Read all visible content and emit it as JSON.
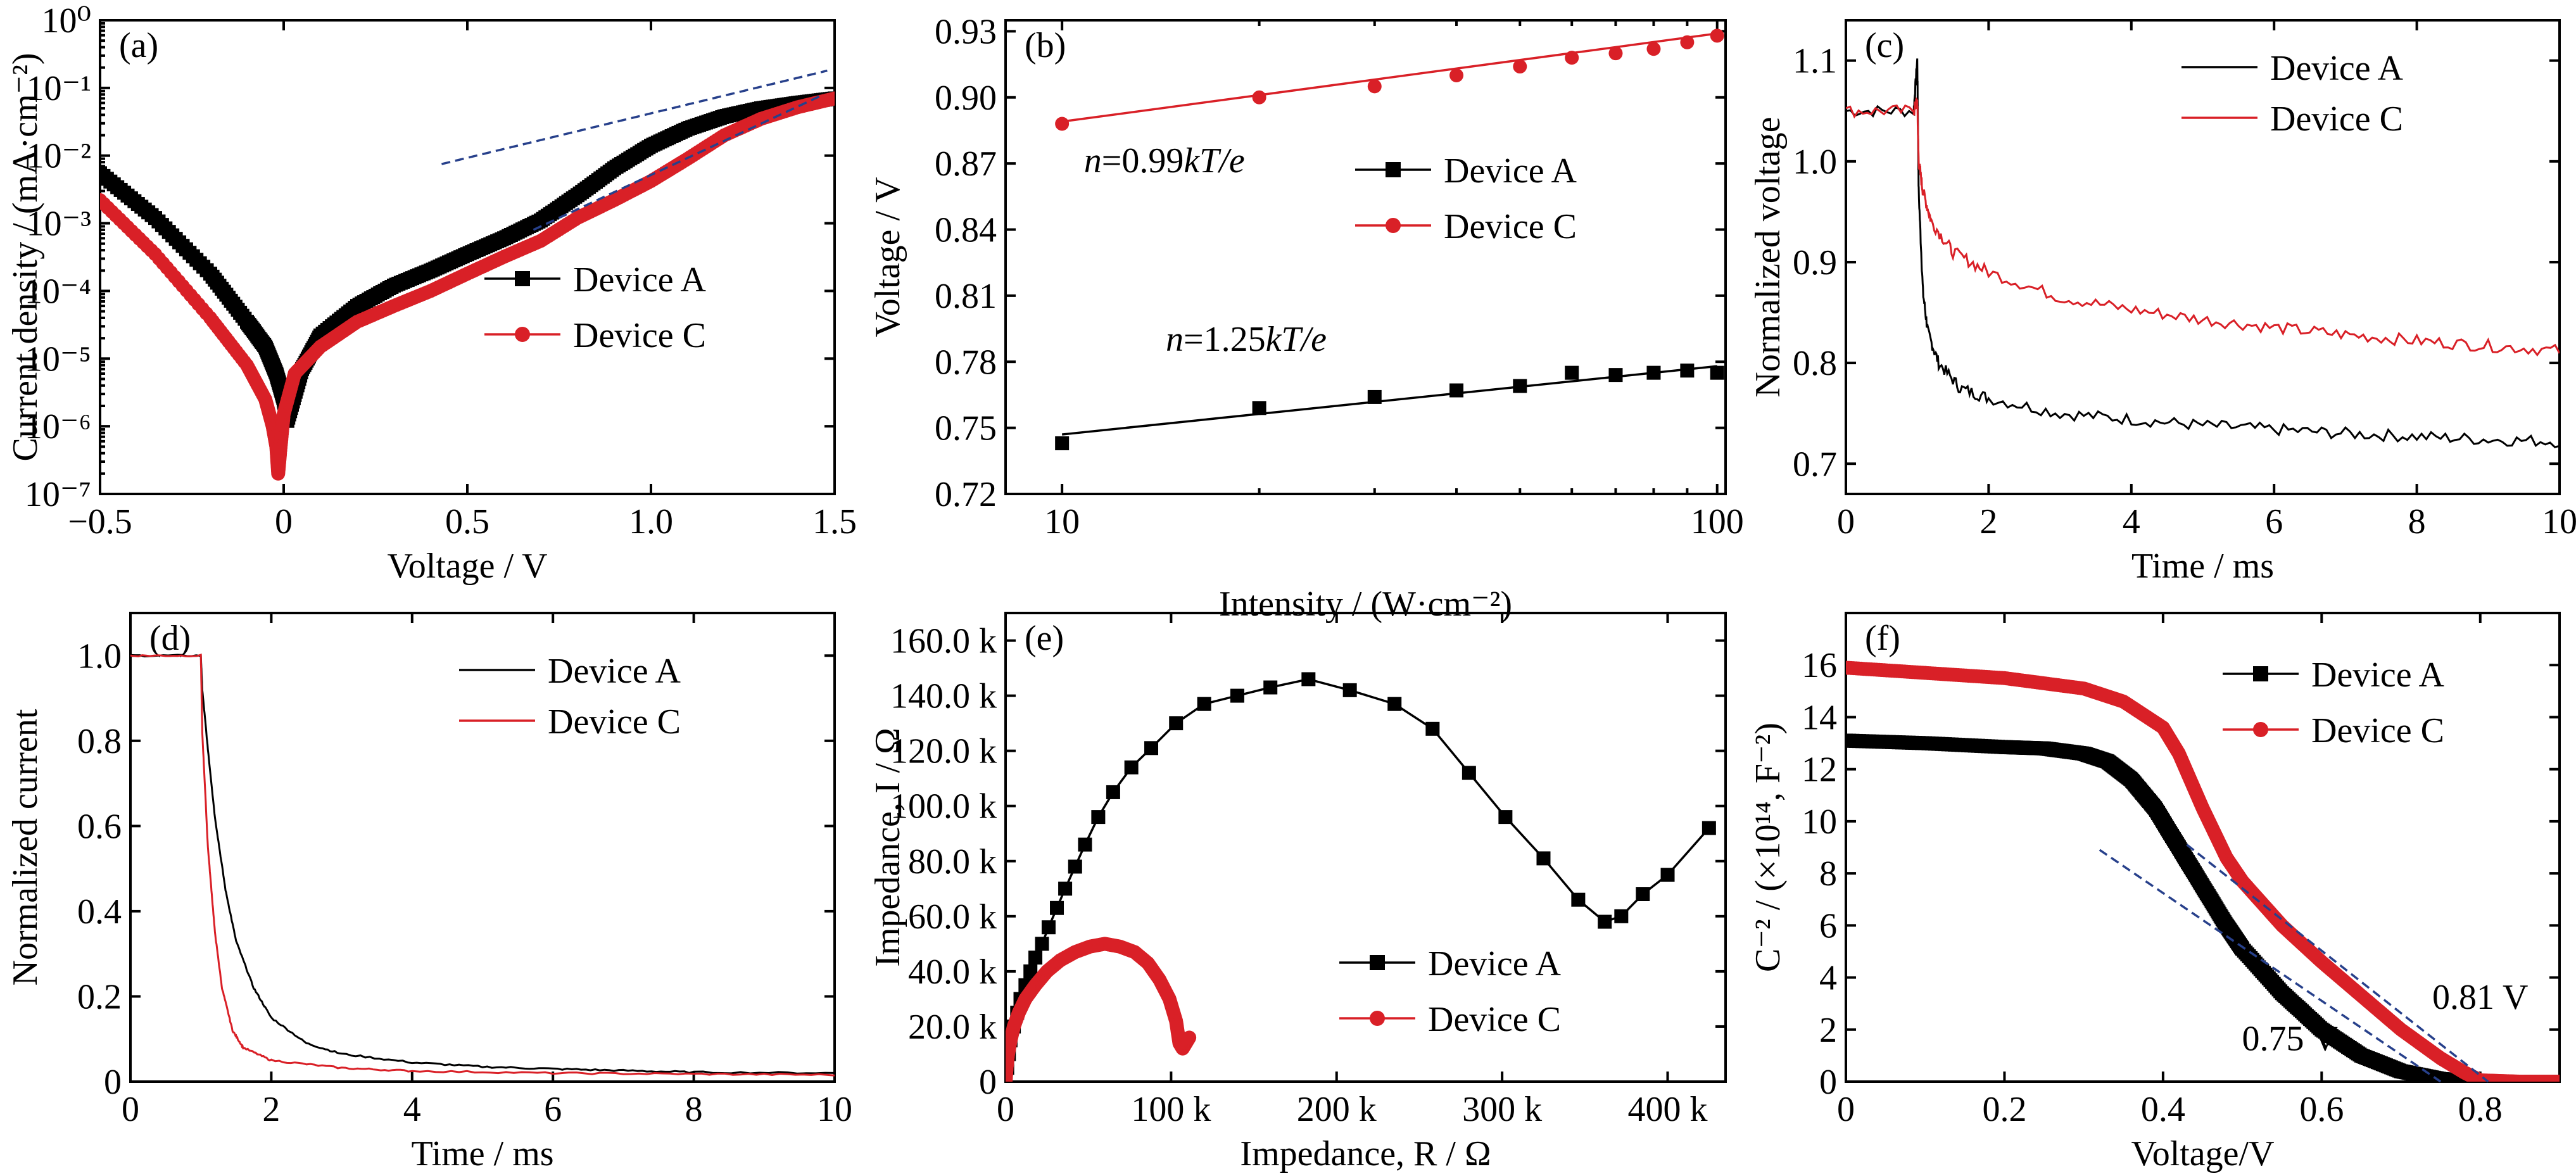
{
  "figure": {
    "colors": {
      "a": "#000000",
      "c": "#d92027",
      "fit": "#27408b"
    }
  },
  "chart_data": [
    {
      "id": "a",
      "type": "scatter",
      "panel_label": "(a)",
      "xlabel": "Voltage / V",
      "ylabel": "Current density / (mA·cm⁻²)",
      "xlim": [
        -0.5,
        1.5
      ],
      "ylim": [
        1e-07,
        1
      ],
      "log_y": true,
      "grid": false,
      "legend_position": "center-right",
      "x_ticks": [
        -0.5,
        0,
        0.5,
        1.0,
        1.5
      ],
      "x_tick_labels": [
        "−0.5",
        "0",
        "0.5",
        "1.0",
        "1.5"
      ],
      "y_ticks": [
        1e-07,
        1e-06,
        1e-05,
        0.0001,
        0.001,
        0.01,
        0.1,
        1
      ],
      "y_tick_labels": [
        "10⁻⁷",
        "10⁻⁶",
        "10⁻⁵",
        "10⁻⁴",
        "10⁻³",
        "10⁻²",
        "10⁻¹",
        "10⁰"
      ],
      "series": [
        {
          "name": "Device A",
          "color": "#000000",
          "marker": "square",
          "line": true,
          "density": 90,
          "x": [
            -0.5,
            -0.35,
            -0.2,
            -0.1,
            -0.05,
            -0.02,
            0.0,
            0.01,
            0.05,
            0.1,
            0.2,
            0.3,
            0.4,
            0.5,
            0.6,
            0.7,
            0.8,
            0.9,
            1.0,
            1.1,
            1.2,
            1.3,
            1.4,
            1.5
          ],
          "y": [
            0.0055,
            0.0012,
            0.00018,
            3.5e-05,
            1.5e-05,
            6e-06,
            2.5e-06,
            1.2e-06,
            7e-06,
            2.2e-05,
            6e-05,
            0.00012,
            0.0002,
            0.00035,
            0.0006,
            0.0011,
            0.0026,
            0.0065,
            0.014,
            0.025,
            0.038,
            0.05,
            0.06,
            0.07
          ]
        },
        {
          "name": "Device C",
          "color": "#d92027",
          "marker": "circle",
          "line": true,
          "density": 90,
          "x": [
            -0.5,
            -0.35,
            -0.2,
            -0.1,
            -0.05,
            -0.03,
            -0.02,
            -0.015,
            -0.01,
            0.0,
            0.03,
            0.1,
            0.2,
            0.3,
            0.4,
            0.5,
            0.6,
            0.7,
            0.8,
            0.9,
            1.0,
            1.1,
            1.2,
            1.3,
            1.4,
            1.5
          ],
          "y": [
            0.0022,
            0.00035,
            4e-05,
            8e-06,
            2.5e-06,
            1e-06,
            5e-07,
            2e-07,
            4e-07,
            1.5e-06,
            6e-06,
            1.5e-05,
            3.5e-05,
            6e-05,
            0.0001,
            0.00018,
            0.00032,
            0.00055,
            0.0012,
            0.0022,
            0.0042,
            0.009,
            0.02,
            0.035,
            0.052,
            0.07
          ]
        }
      ],
      "fit_lines": [
        {
          "color": "#27408b",
          "x": [
            0.43,
            1.48
          ],
          "y": [
            0.0075,
            0.18
          ]
        },
        {
          "color": "#27408b",
          "x": [
            0.68,
            1.47
          ],
          "y": [
            0.0008,
            0.08
          ]
        }
      ]
    },
    {
      "id": "b",
      "type": "scatter",
      "panel_label": "(b)",
      "xlabel": "Intensity / (W·cm⁻²)",
      "ylabel": "Voltage / V",
      "xlim": [
        8.2,
        103
      ],
      "ylim": [
        0.72,
        0.935
      ],
      "log_x": true,
      "grid": false,
      "legend_position": "center-right",
      "x_ticks": [
        10,
        100
      ],
      "x_tick_labels": [
        "10",
        "100"
      ],
      "x_minor_ticks": [
        20,
        30,
        40,
        50,
        60,
        70,
        80,
        90
      ],
      "y_ticks": [
        0.72,
        0.75,
        0.78,
        0.81,
        0.84,
        0.87,
        0.9,
        0.93
      ],
      "y_tick_labels": [
        "0.72",
        "0.75",
        "0.78",
        "0.81",
        "0.84",
        "0.87",
        "0.90",
        "0.93"
      ],
      "series": [
        {
          "name": "Device A",
          "color": "#000000",
          "marker": "square",
          "line": false,
          "x": [
            10,
            20,
            30,
            40,
            50,
            60,
            70,
            80,
            90,
            100
          ],
          "y": [
            0.743,
            0.759,
            0.764,
            0.767,
            0.769,
            0.775,
            0.774,
            0.775,
            0.776,
            0.775
          ]
        },
        {
          "name": "Device C",
          "color": "#d92027",
          "marker": "circle",
          "line": false,
          "x": [
            10,
            20,
            30,
            40,
            50,
            60,
            70,
            80,
            90,
            100
          ],
          "y": [
            0.888,
            0.9,
            0.905,
            0.91,
            0.914,
            0.918,
            0.92,
            0.922,
            0.925,
            0.928
          ]
        }
      ],
      "fit_lines": [
        {
          "color": "#000000",
          "x": [
            10,
            100
          ],
          "y": [
            0.747,
            0.778
          ]
        },
        {
          "color": "#d92027",
          "x": [
            10,
            100
          ],
          "y": [
            0.889,
            0.929
          ]
        }
      ],
      "annotations": [
        {
          "text_n": "n",
          "text_eq": "=0.99",
          "text_kt": "kT",
          "text_e": "/e",
          "color": "#d92027",
          "x": 0.866,
          "y": 10.8
        },
        {
          "text_n": "n",
          "text_eq": "=1.25",
          "text_kt": "kT",
          "text_e": "/e",
          "color": "#000000",
          "x": 0.785,
          "y": 14.4
        }
      ]
    },
    {
      "id": "c",
      "type": "line",
      "panel_label": "(c)",
      "xlabel": "Time / ms",
      "ylabel": "Normalized voltage",
      "xlim": [
        0,
        10
      ],
      "ylim": [
        0.67,
        1.14
      ],
      "grid": false,
      "legend_position": "top-right",
      "x_ticks": [
        0,
        2,
        4,
        6,
        8,
        10
      ],
      "x_tick_labels": [
        "0",
        "2",
        "4",
        "6",
        "8",
        "10"
      ],
      "y_ticks": [
        0.7,
        0.8,
        0.9,
        1.0,
        1.1
      ],
      "y_tick_labels": [
        "0.7",
        "0.8",
        "0.9",
        "1.0",
        "1.1"
      ],
      "series": [
        {
          "name": "Device A",
          "color": "#000000",
          "noise": 0.006,
          "x": [
            0,
            0.95,
            1.0,
            1.02,
            1.08,
            1.15,
            1.3,
            1.6,
            2.0,
            3.0,
            4.0,
            5.0,
            6.0,
            7.0,
            8.0,
            9.0,
            10.0
          ],
          "y": [
            1.05,
            1.05,
            1.1,
            0.97,
            0.87,
            0.83,
            0.8,
            0.775,
            0.765,
            0.75,
            0.744,
            0.738,
            0.734,
            0.73,
            0.727,
            0.724,
            0.722
          ]
        },
        {
          "name": "Device C",
          "color": "#d92027",
          "noise": 0.006,
          "x": [
            0,
            0.95,
            1.0,
            1.02,
            1.08,
            1.2,
            1.5,
            2.0,
            3.0,
            4.0,
            5.0,
            6.0,
            7.0,
            8.0,
            9.0,
            10.0
          ],
          "y": [
            1.05,
            1.05,
            1.06,
            1.0,
            0.97,
            0.94,
            0.91,
            0.89,
            0.865,
            0.853,
            0.843,
            0.835,
            0.828,
            0.822,
            0.817,
            0.812
          ]
        }
      ]
    },
    {
      "id": "d",
      "type": "line",
      "panel_label": "(d)",
      "xlabel": "Time / ms",
      "ylabel": "Normalized current",
      "xlim": [
        0,
        10
      ],
      "ylim": [
        0,
        1.1
      ],
      "grid": false,
      "legend_position": "top-right",
      "x_ticks": [
        0,
        2,
        4,
        6,
        8,
        10
      ],
      "x_tick_labels": [
        "0",
        "2",
        "4",
        "6",
        "8",
        "10"
      ],
      "y_ticks": [
        0,
        0.2,
        0.4,
        0.6,
        0.8,
        1.0
      ],
      "y_tick_labels": [
        "0",
        "0.2",
        "0.4",
        "0.6",
        "0.8",
        "1.0"
      ],
      "series": [
        {
          "name": "Device A",
          "color": "#000000",
          "noise": 0.002,
          "x": [
            0,
            1.0,
            1.02,
            1.1,
            1.2,
            1.35,
            1.5,
            1.75,
            2.0,
            2.5,
            3.0,
            4.0,
            5.0,
            6.0,
            7.0,
            8.0,
            10.0
          ],
          "y": [
            1.0,
            1.0,
            0.92,
            0.78,
            0.62,
            0.45,
            0.33,
            0.22,
            0.15,
            0.09,
            0.065,
            0.045,
            0.035,
            0.03,
            0.026,
            0.022,
            0.02
          ]
        },
        {
          "name": "Device C",
          "color": "#d92027",
          "noise": 0.002,
          "x": [
            0,
            1.0,
            1.02,
            1.1,
            1.2,
            1.3,
            1.45,
            1.6,
            2.0,
            3.0,
            4.0,
            6.0,
            8.0,
            10.0
          ],
          "y": [
            1.0,
            1.0,
            0.82,
            0.55,
            0.35,
            0.22,
            0.12,
            0.08,
            0.05,
            0.032,
            0.025,
            0.02,
            0.018,
            0.016
          ]
        }
      ]
    },
    {
      "id": "e",
      "type": "scatter",
      "panel_label": "(e)",
      "xlabel": "Impedance, R / Ω",
      "ylabel": "Impedance, I / Ω",
      "xlim": [
        0,
        435000
      ],
      "ylim": [
        0,
        170000
      ],
      "grid": false,
      "legend_position": "bottom-right",
      "x_ticks": [
        0,
        100000,
        200000,
        300000,
        400000
      ],
      "x_tick_labels": [
        "0",
        "100 k",
        "200 k",
        "300 k",
        "400 k"
      ],
      "y_ticks": [
        0,
        20000,
        40000,
        60000,
        80000,
        100000,
        120000,
        140000,
        160000
      ],
      "y_tick_labels": [
        "0",
        "20.0 k",
        "40.0 k",
        "60.0 k",
        "80.0 k",
        "100.0 k",
        "120.0 k",
        "140.0 k",
        "160.0 k"
      ],
      "series": [
        {
          "name": "Device A",
          "color": "#000000",
          "marker": "square",
          "line": true,
          "x": [
            0,
            1000,
            2000,
            3000,
            5000,
            7000,
            9000,
            12000,
            15000,
            18000,
            22000,
            26000,
            31000,
            36000,
            42000,
            48000,
            56000,
            65000,
            76000,
            88000,
            103000,
            120000,
            140000,
            160000,
            183000,
            208000,
            235000,
            258000,
            280000,
            302000,
            325000,
            346000,
            362000,
            372000,
            385000,
            400000,
            425000
          ],
          "y": [
            0,
            5000,
            10000,
            15000,
            20000,
            25000,
            30000,
            35000,
            40000,
            45000,
            50000,
            56000,
            63000,
            70000,
            78000,
            86000,
            96000,
            105000,
            114000,
            121000,
            130000,
            137000,
            140000,
            143000,
            146000,
            142000,
            137000,
            128000,
            112000,
            96000,
            81000,
            66000,
            58000,
            60000,
            68000,
            75000,
            92000
          ]
        },
        {
          "name": "Device C",
          "color": "#d92027",
          "marker": "circle",
          "line": true,
          "density": 60,
          "x": [
            0,
            600,
            1500,
            3000,
            5000,
            8000,
            12000,
            18000,
            25000,
            33000,
            42000,
            51000,
            60000,
            69000,
            78000,
            86000,
            93000,
            99000,
            103000,
            105000,
            107000,
            109000,
            111000
          ],
          "y": [
            0,
            5000,
            10000,
            15000,
            20000,
            25000,
            30000,
            35000,
            40000,
            44000,
            47000,
            49000,
            50000,
            49000,
            47000,
            43000,
            37000,
            30000,
            22000,
            14000,
            12000,
            14000,
            16000
          ]
        }
      ]
    },
    {
      "id": "f",
      "type": "scatter",
      "panel_label": "(f)",
      "xlabel": "Voltage/V",
      "ylabel": "C⁻² / (×10¹⁴, F⁻²)",
      "xlim": [
        0,
        0.9
      ],
      "ylim": [
        0,
        18
      ],
      "grid": false,
      "legend_position": "top-right",
      "x_ticks": [
        0,
        0.2,
        0.4,
        0.6,
        0.8
      ],
      "x_tick_labels": [
        "0",
        "0.2",
        "0.4",
        "0.6",
        "0.8"
      ],
      "y_ticks": [
        0,
        2,
        4,
        6,
        8,
        10,
        12,
        14,
        16
      ],
      "y_tick_labels": [
        "0",
        "2",
        "4",
        "6",
        "8",
        "10",
        "12",
        "14",
        "16"
      ],
      "series": [
        {
          "name": "Device A",
          "color": "#000000",
          "marker": "square",
          "line": true,
          "density": 120,
          "x": [
            0,
            0.1,
            0.2,
            0.25,
            0.3,
            0.33,
            0.36,
            0.39,
            0.42,
            0.45,
            0.48,
            0.5,
            0.55,
            0.6,
            0.65,
            0.7,
            0.75,
            0.78,
            0.8,
            0.85,
            0.9
          ],
          "y": [
            13.1,
            13.0,
            12.85,
            12.8,
            12.6,
            12.3,
            11.6,
            10.5,
            9.0,
            7.5,
            6.0,
            5.1,
            3.4,
            2.0,
            1.0,
            0.4,
            0.1,
            0.02,
            0,
            0,
            0
          ]
        },
        {
          "name": "Device C",
          "color": "#d92027",
          "marker": "circle",
          "line": true,
          "density": 140,
          "x": [
            0,
            0.1,
            0.2,
            0.3,
            0.35,
            0.4,
            0.42,
            0.45,
            0.48,
            0.5,
            0.55,
            0.6,
            0.65,
            0.7,
            0.75,
            0.78,
            0.8,
            0.85,
            0.9
          ],
          "y": [
            15.9,
            15.7,
            15.5,
            15.1,
            14.6,
            13.6,
            12.6,
            10.5,
            8.6,
            7.7,
            6.0,
            4.6,
            3.3,
            2.0,
            0.9,
            0.35,
            0.05,
            0,
            0
          ]
        }
      ],
      "fit_lines": [
        {
          "color": "#27408b",
          "x": [
            0.32,
            0.75
          ],
          "y": [
            8.9,
            0
          ]
        },
        {
          "color": "#27408b",
          "x": [
            0.43,
            0.81
          ],
          "y": [
            9.1,
            0
          ]
        }
      ],
      "annotations": [
        {
          "text": "0.75 V",
          "color": "#000000",
          "x": 0.56,
          "y": 1.2
        },
        {
          "text": "0.81 V",
          "color": "#000000",
          "x": 0.8,
          "y": 2.8
        }
      ]
    }
  ]
}
